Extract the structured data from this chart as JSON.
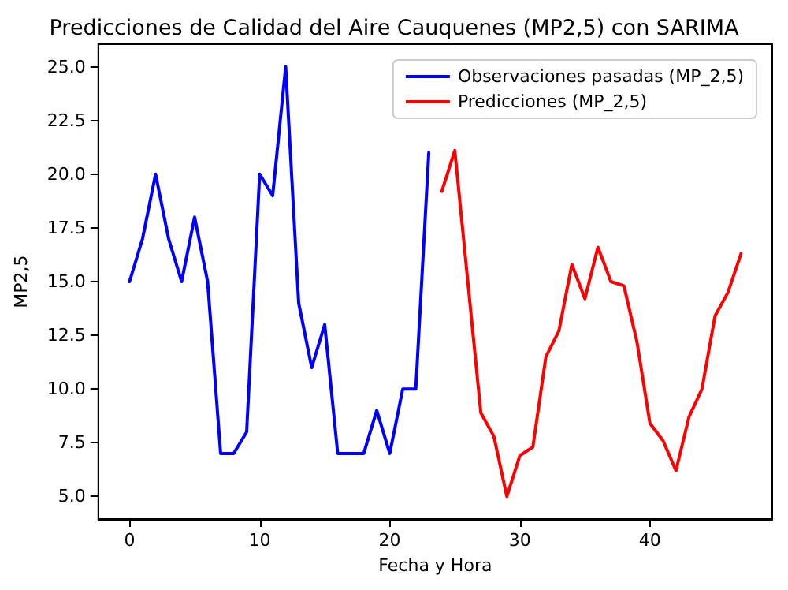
{
  "chart_data": {
    "type": "line",
    "title": "Predicciones de Calidad del Aire Cauquenes (MP2,5) con SARIMA",
    "xlabel": "Fecha y Hora",
    "ylabel": "MP2,5",
    "series": [
      {
        "name": "Observaciones pasadas (MP_2,5)",
        "color": "#0000ff",
        "x": [
          0,
          1,
          2,
          3,
          4,
          5,
          6,
          7,
          8,
          9,
          10,
          11,
          12,
          13,
          14,
          15,
          16,
          17,
          18,
          19,
          20,
          21,
          22,
          23
        ],
        "values": [
          15,
          17,
          20,
          17,
          15,
          18,
          15,
          7,
          7,
          8,
          20,
          19,
          25,
          14,
          11,
          13,
          7,
          7,
          7,
          9,
          7,
          10,
          10,
          21
        ]
      },
      {
        "name": "Predicciones (MP_2,5)",
        "color": "#ff0000",
        "x": [
          24,
          25,
          26,
          27,
          28,
          29,
          30,
          31,
          32,
          33,
          34,
          35,
          36,
          37,
          38,
          39,
          40,
          41,
          42,
          43,
          44,
          45,
          46,
          47
        ],
        "values": [
          19.2,
          21.1,
          15.0,
          8.9,
          7.8,
          5.0,
          6.9,
          7.3,
          11.5,
          12.7,
          15.8,
          14.2,
          16.6,
          15.0,
          14.8,
          12.2,
          8.4,
          7.6,
          6.2,
          8.7,
          10.0,
          13.4,
          14.5,
          16.3
        ]
      }
    ],
    "xlim": [
      -2.4,
      49.4
    ],
    "xticks": [
      0,
      10,
      20,
      30,
      40
    ],
    "ylim": [
      3.95,
      26.05
    ],
    "yticks": [
      {
        "value": 5,
        "label": "5.0"
      },
      {
        "value": 7.5,
        "label": "7.5"
      },
      {
        "value": 10,
        "label": "10.0"
      },
      {
        "value": 12.5,
        "label": "12.5"
      },
      {
        "value": 15,
        "label": "15.0"
      },
      {
        "value": 17.5,
        "label": "17.5"
      },
      {
        "value": 20,
        "label": "20.0"
      },
      {
        "value": 22.5,
        "label": "22.5"
      },
      {
        "value": 25,
        "label": "25.0"
      }
    ],
    "legend": "top right",
    "grid": false,
    "marker": "none",
    "line_style": "solid"
  }
}
